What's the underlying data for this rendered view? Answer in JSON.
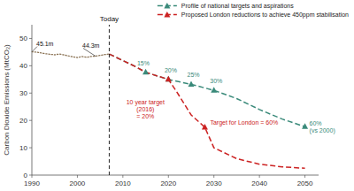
{
  "chart_data": {
    "type": "line",
    "ylabel": "Carbon Dioxide Emissions (MtCO₂)",
    "xlim": [
      1990,
      2053
    ],
    "ylim": [
      0,
      55
    ],
    "xticks": [
      1990,
      2000,
      2010,
      2020,
      2030,
      2040,
      2050
    ],
    "yticks": [
      0,
      10,
      20,
      30,
      40,
      50
    ],
    "grid": false,
    "legend": "upper right",
    "series": [
      {
        "color": "#8B7355",
        "line_style": "dotted",
        "x": [
          1990,
          1991,
          1992,
          1993,
          1994,
          1995,
          1996,
          1997,
          1998,
          1999,
          2000,
          2001,
          2002,
          2003,
          2004,
          2005,
          2006,
          2007
        ],
        "values": [
          45.1,
          45.0,
          44.7,
          44.4,
          44.2,
          44.0,
          44.3,
          44.0,
          43.6,
          43.3,
          43.0,
          43.4,
          43.1,
          43.4,
          43.5,
          43.8,
          44.1,
          44.3
        ]
      },
      {
        "name": "Profile of national targets and aspirations",
        "color": "#3A8A7A",
        "line_style": "dashed",
        "x": [
          2007,
          2013,
          2015,
          2020,
          2025,
          2030,
          2035,
          2040,
          2045,
          2050
        ],
        "values": [
          44.3,
          39.5,
          37.6,
          35.0,
          33.2,
          31.0,
          28.0,
          24.0,
          20.5,
          17.7
        ]
      },
      {
        "name": "Proposed London reductions to achieve 450ppm stabilisation",
        "color": "#CC2222",
        "line_style": "dashed",
        "x": [
          2007,
          2013,
          2015,
          2020,
          2022,
          2025,
          2028,
          2030,
          2035,
          2040,
          2045,
          2050
        ],
        "values": [
          44.3,
          39.5,
          37.6,
          35.0,
          30.0,
          22.0,
          17.5,
          10.0,
          6.0,
          4.0,
          3.0,
          2.5
        ]
      }
    ],
    "annotations": [
      {
        "type": "vline",
        "text": "Today",
        "x": 2007
      },
      {
        "text": "45.1m",
        "x": 1990,
        "y": 45.1
      },
      {
        "text": "44.3m",
        "x": 2004,
        "y": 43.5
      },
      {
        "text": "15%",
        "x": 2015,
        "y": 37.6,
        "color": "#3A8A7A",
        "marker": "triangle"
      },
      {
        "text": "20%",
        "x": 2020,
        "y": 35.0,
        "color": "#3A8A7A",
        "marker": "triangle"
      },
      {
        "text": "25%",
        "x": 2025,
        "y": 33.2,
        "color": "#3A8A7A",
        "marker": "triangle"
      },
      {
        "text": "30%",
        "x": 2030,
        "y": 31.0,
        "color": "#3A8A7A",
        "marker": "triangle"
      },
      {
        "text": "10 year target\n(2016)\n= 20%",
        "x": 2020,
        "y": 35.0,
        "color": "#CC2222",
        "marker": "triangle"
      },
      {
        "text": "Target for London = 60%",
        "x": 2028,
        "y": 17.5,
        "color": "#CC2222",
        "marker": "triangle"
      },
      {
        "text": "60%\n(vs 2000)",
        "x": 2050,
        "y": 17.7,
        "color": "#3A8A7A",
        "marker": "triangle"
      }
    ]
  }
}
